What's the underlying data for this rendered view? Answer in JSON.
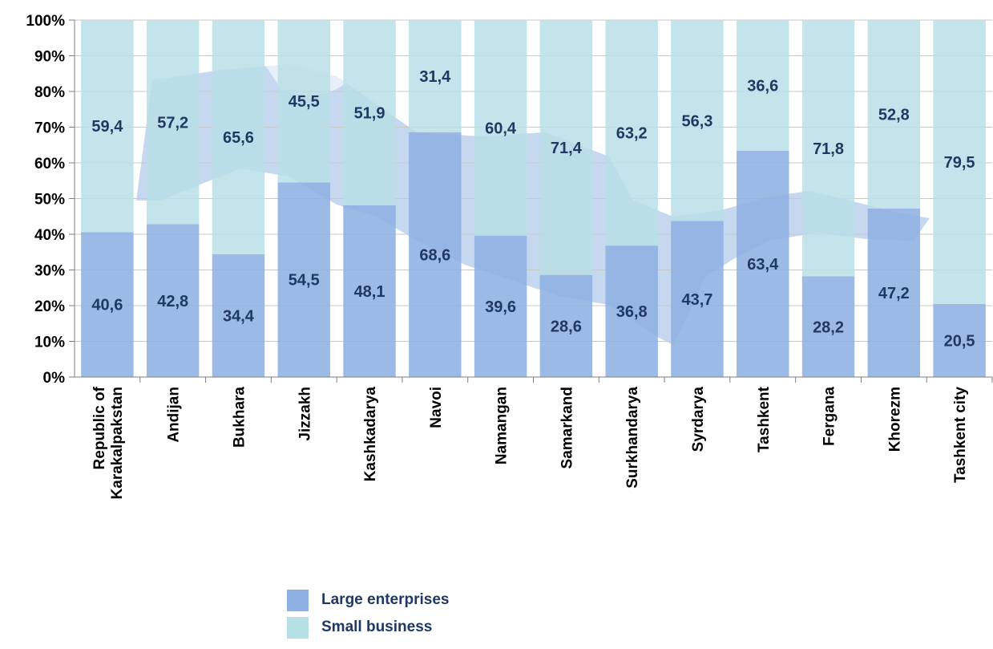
{
  "chart_data": {
    "type": "bar",
    "stacked": true,
    "percent_stacked": true,
    "categories": [
      [
        "Republic of",
        "Karakalpakstan"
      ],
      [
        "Andijan"
      ],
      [
        "Bukhara"
      ],
      [
        "Jizzakh"
      ],
      [
        "Kashkadarya"
      ],
      [
        "Navoi"
      ],
      [
        "Namangan"
      ],
      [
        "Samarkand"
      ],
      [
        "Surkhandarya"
      ],
      [
        "Syrdarya"
      ],
      [
        "Tashkent"
      ],
      [
        "Fergana"
      ],
      [
        "Khorezm"
      ],
      [
        "Tashkent city"
      ]
    ],
    "series": [
      {
        "name": "Large enterprises",
        "color": "#8eb0e3",
        "values": [
          40.6,
          42.8,
          34.4,
          54.5,
          48.1,
          68.6,
          39.6,
          28.6,
          36.8,
          43.7,
          63.4,
          28.2,
          47.2,
          20.5
        ],
        "labels": [
          "40,6",
          "42,8",
          "34,4",
          "54,5",
          "48,1",
          "68,6",
          "39,6",
          "28,6",
          "36,8",
          "43,7",
          "63,4",
          "28,2",
          "47,2",
          "20,5"
        ]
      },
      {
        "name": "Small business",
        "color": "#b7dfe6",
        "values": [
          59.4,
          57.2,
          65.6,
          45.5,
          51.9,
          31.4,
          60.4,
          71.4,
          63.2,
          56.3,
          36.6,
          71.8,
          52.8,
          79.5
        ],
        "labels": [
          "59,4",
          "57,2",
          "65,6",
          "45,5",
          "51,9",
          "31,4",
          "60,4",
          "71,4",
          "63,2",
          "56,3",
          "36,6",
          "71,8",
          "52,8",
          "79,5"
        ]
      }
    ],
    "y_ticks": [
      "0%",
      "10%",
      "20%",
      "30%",
      "40%",
      "50%",
      "60%",
      "70%",
      "80%",
      "90%",
      "100%"
    ],
    "ylim": [
      0,
      100
    ],
    "grid": true,
    "legend_position": "bottom",
    "title": "",
    "xlabel": "",
    "ylabel": ""
  },
  "legend": {
    "items": [
      {
        "label": "Large enterprises",
        "color": "#8eb0e3"
      },
      {
        "label": "Small business",
        "color": "#b7dfe6"
      }
    ]
  }
}
